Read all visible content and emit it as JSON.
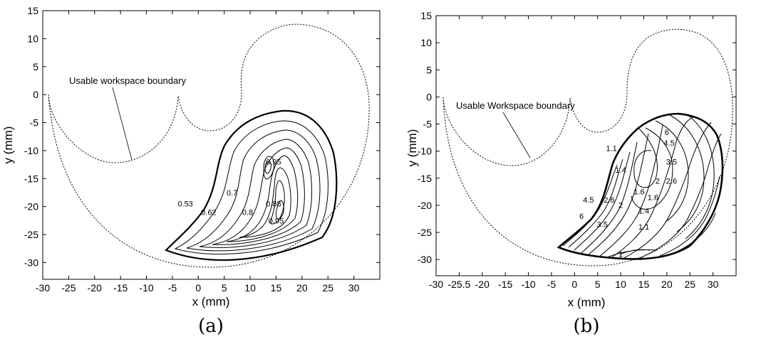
{
  "chart_data": [
    {
      "type": "line",
      "caption": "(a)",
      "xlabel": "x (mm)",
      "ylabel": "y (mm)",
      "xlim": [
        -30,
        35
      ],
      "ylim": [
        -33,
        15
      ],
      "xticks": [
        "-30",
        "-25",
        "-20",
        "-15",
        "-10",
        "-5",
        "0",
        "5",
        "10",
        "15",
        "20",
        "25",
        "30"
      ],
      "yticks": [
        "15",
        "10",
        "5",
        "0",
        "-5",
        "-10",
        "-15",
        "-20",
        "-25",
        "-30"
      ],
      "annotation": {
        "text": "Usable workspace boundary",
        "x": -20,
        "y": 4.5,
        "target": [
          -12.5,
          -12
        ]
      },
      "contour_labels": [
        {
          "text": "0.95",
          "x": 14.5,
          "y": -12.5
        },
        {
          "text": "0.53",
          "x": -2.5,
          "y": -20
        },
        {
          "text": "0.7",
          "x": 6.5,
          "y": -18
        },
        {
          "text": "0.88",
          "x": 14.5,
          "y": -20
        },
        {
          "text": "0.62",
          "x": 2,
          "y": -21.5
        },
        {
          "text": "0.8",
          "x": 9.5,
          "y": -21.5
        },
        {
          "text": "0.95",
          "x": 15,
          "y": -23
        }
      ],
      "grid": false
    },
    {
      "type": "line",
      "caption": "(b)",
      "xlabel": "x (mm)",
      "ylabel": "y (mm)",
      "xlim": [
        -30,
        35
      ],
      "ylim": [
        -33,
        15
      ],
      "xticks": [
        "-30",
        "-25.5",
        "-20",
        "-15",
        "-10",
        "-5",
        "0",
        "5",
        "10",
        "15",
        "20",
        "25",
        "30"
      ],
      "yticks": [
        "15",
        "10",
        "5",
        "0",
        "-5",
        "-10",
        "-15",
        "-20",
        "-25",
        "-30"
      ],
      "annotation": {
        "text": "Usable Workspace boundary",
        "x": -17,
        "y": 3,
        "target": [
          -11,
          -12
        ]
      },
      "contour_labels": [
        {
          "text": "1.1",
          "x": 8,
          "y": -10
        },
        {
          "text": "1.4",
          "x": 10,
          "y": -14
        },
        {
          "text": "6",
          "x": 20,
          "y": -7
        },
        {
          "text": "4.5",
          "x": 20.5,
          "y": -9
        },
        {
          "text": "3.5",
          "x": 21,
          "y": -12.5
        },
        {
          "text": "2",
          "x": 18,
          "y": -16
        },
        {
          "text": "2.6",
          "x": 21,
          "y": -16
        },
        {
          "text": "1.6",
          "x": 14,
          "y": -18
        },
        {
          "text": "1.6",
          "x": 17,
          "y": -19
        },
        {
          "text": "4.5",
          "x": 3,
          "y": -19.5
        },
        {
          "text": "2.6",
          "x": 7.5,
          "y": -19.5
        },
        {
          "text": "2",
          "x": 10,
          "y": -20.5
        },
        {
          "text": "1.4",
          "x": 15,
          "y": -21.5
        },
        {
          "text": "6",
          "x": 1.5,
          "y": -22.5
        },
        {
          "text": "3.5",
          "x": 6,
          "y": -24
        },
        {
          "text": "1.1",
          "x": 15,
          "y": -24.5
        },
        {
          "text": "1",
          "x": 10,
          "y": -29.5
        }
      ],
      "grid": false
    }
  ]
}
